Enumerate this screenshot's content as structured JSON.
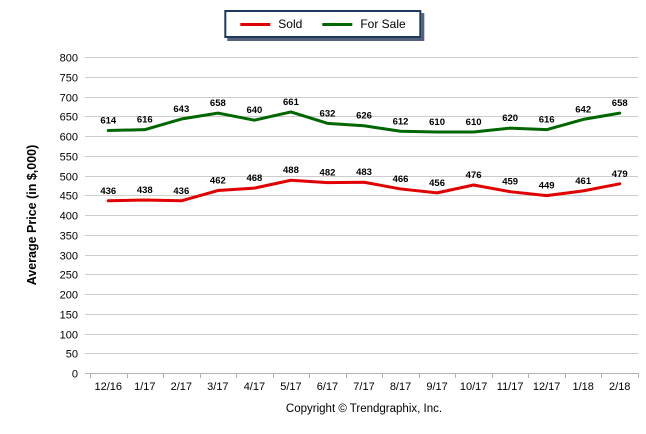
{
  "chart_data": {
    "type": "line",
    "categories": [
      "12/16",
      "1/17",
      "2/17",
      "3/17",
      "4/17",
      "5/17",
      "6/17",
      "7/17",
      "8/17",
      "9/17",
      "10/17",
      "11/17",
      "12/17",
      "1/18",
      "2/18"
    ],
    "series": [
      {
        "name": "Sold",
        "color": "#e00000",
        "values": [
          436,
          438,
          436,
          462,
          468,
          488,
          482,
          483,
          466,
          456,
          476,
          459,
          449,
          461,
          479
        ]
      },
      {
        "name": "For Sale",
        "color": "#006600",
        "values": [
          614,
          616,
          643,
          658,
          640,
          661,
          632,
          626,
          612,
          610,
          610,
          620,
          616,
          642,
          658
        ]
      }
    ],
    "title": "",
    "xlabel": "",
    "ylabel": "Average Price (in $,000)",
    "ylim": [
      0,
      800
    ],
    "yticks": [
      0,
      50,
      100,
      150,
      200,
      250,
      300,
      350,
      400,
      450,
      500,
      550,
      600,
      650,
      700,
      750,
      800
    ],
    "grid": "horizontal",
    "legend_position": "top-center",
    "data_labels": true,
    "footer": "Copyright © Trendgraphix, Inc."
  },
  "colors": {
    "grid": "#cccccc",
    "axis": "#b3b3b3",
    "legend_border": "#1f3a5f",
    "text": "#000000"
  }
}
